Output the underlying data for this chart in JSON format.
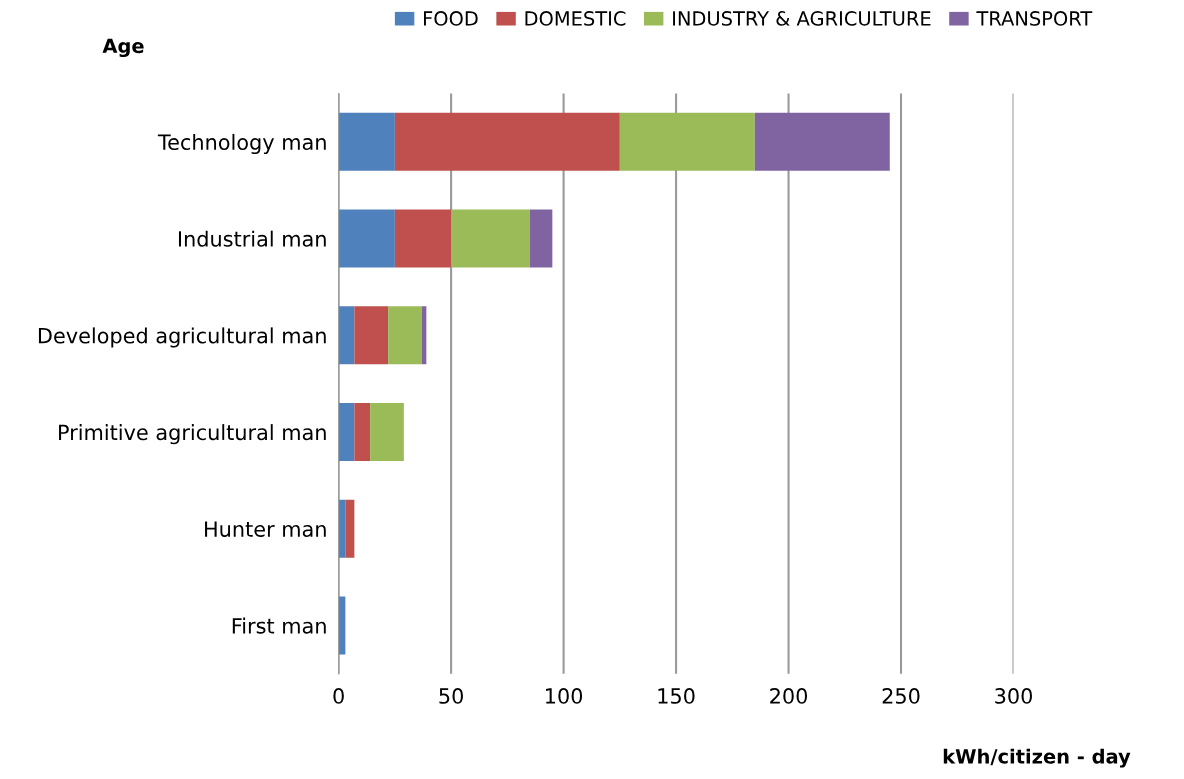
{
  "chart_data": {
    "type": "bar",
    "orientation": "horizontal",
    "stacked": true,
    "ylabel": "Age",
    "xlabel": "kWh/citizen - day",
    "categories": [
      "Technology man",
      "Industrial man",
      "Developed agricultural man",
      "Primitive agricultural man",
      "Hunter man",
      "First man"
    ],
    "series": [
      {
        "name": "FOOD",
        "color": "#4f81bd",
        "values": [
          25,
          25,
          7,
          7,
          3,
          3
        ]
      },
      {
        "name": "DOMESTIC",
        "color": "#c0504d",
        "values": [
          100,
          25,
          15,
          7,
          4,
          0
        ]
      },
      {
        "name": "INDUSTRY & AGRICULTURE",
        "color": "#9bbb59",
        "values": [
          60,
          35,
          15,
          15,
          0,
          0
        ]
      },
      {
        "name": "TRANSPORT",
        "color": "#8064a2",
        "values": [
          60,
          10,
          2,
          0,
          0,
          0
        ]
      }
    ],
    "xlim": [
      0,
      300
    ],
    "xticks": [
      0,
      50,
      100,
      150,
      200,
      250,
      300
    ],
    "grid": "x",
    "legend": "top"
  }
}
